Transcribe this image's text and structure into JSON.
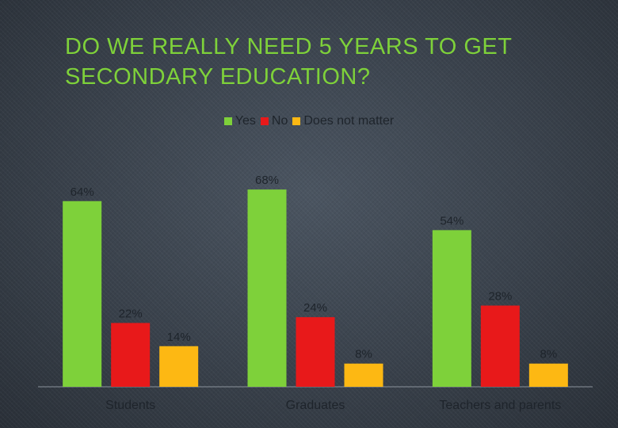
{
  "slide": {
    "title": "DO WE REALLY NEED 5 YEARS TO GET SECONDARY EDUCATION?"
  },
  "chart_data": {
    "type": "bar",
    "categories": [
      "Students",
      "Graduates",
      "Teachers and parents"
    ],
    "series": [
      {
        "name": "Yes",
        "color": "#7ed13a",
        "values": [
          64,
          68,
          54
        ],
        "labels": [
          "64%",
          "68%",
          "54%"
        ]
      },
      {
        "name": "No",
        "color": "#e8191a",
        "values": [
          22,
          24,
          28
        ],
        "labels": [
          "22%",
          "24%",
          "28%"
        ]
      },
      {
        "name": "Does not matter",
        "color": "#fdb813",
        "values": [
          14,
          8,
          8
        ],
        "labels": [
          "14%",
          "8%",
          "8%"
        ]
      }
    ],
    "legend_position": "top",
    "grid": false,
    "ylim": [
      0,
      70
    ]
  }
}
